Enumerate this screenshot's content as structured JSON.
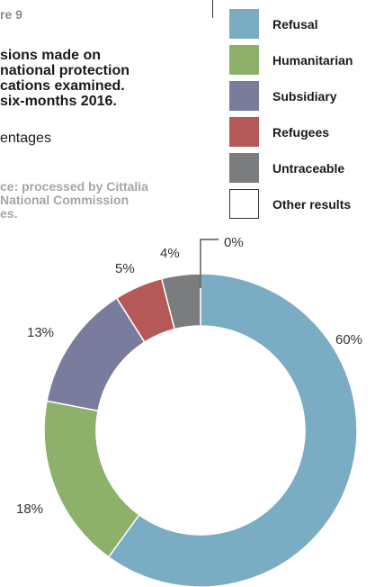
{
  "figure_label": "re 9",
  "title_lines": [
    "sions made on",
    "national protection",
    "cations examined.",
    "six-months 2016."
  ],
  "subtitle": "entages",
  "source_lines": [
    "ce: processed by Cittalia",
    "National Commission",
    "es."
  ],
  "chart_data": {
    "type": "pie",
    "variant": "donut",
    "start": "top, clockwise",
    "categories": [
      "Refusal",
      "Humanitarian",
      "Subsidiary",
      "Refugees",
      "Untraceable",
      "Other results"
    ],
    "values": [
      60,
      18,
      13,
      5,
      4,
      0
    ],
    "labels": [
      "60%",
      "18%",
      "13%",
      "5%",
      "4%",
      "0%"
    ],
    "colors": [
      "#7aacc4",
      "#8db06a",
      "#7a7c9e",
      "#b55858",
      "#7a7c7d",
      "#ffffff"
    ],
    "legend": "top-right"
  }
}
